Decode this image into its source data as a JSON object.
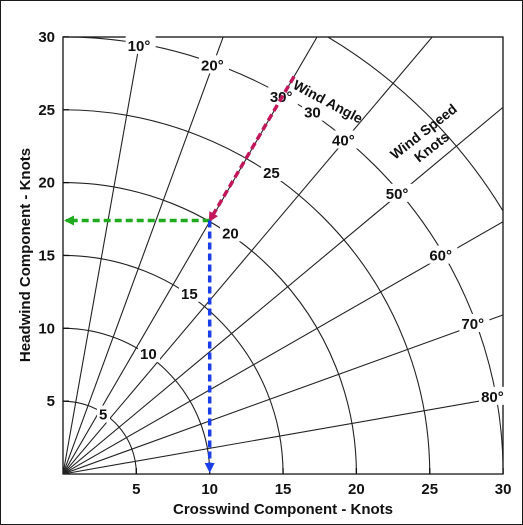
{
  "chart_data": {
    "type": "polar-grid",
    "xlabel": "Crosswind Component - Knots",
    "ylabel": "Headwind Component - Knots",
    "xlim": [
      0,
      30
    ],
    "ylim": [
      0,
      30
    ],
    "x_ticks": [
      "5",
      "10",
      "15",
      "20",
      "25",
      "30"
    ],
    "y_ticks": [
      "5",
      "10",
      "15",
      "20",
      "25",
      "30"
    ],
    "wind_speed_rings": [
      5,
      10,
      15,
      20,
      25,
      30,
      35
    ],
    "wind_speed_labels": [
      {
        "speed": 5,
        "text": "5"
      },
      {
        "speed": 10,
        "text": "10"
      },
      {
        "speed": 15,
        "text": "15"
      },
      {
        "speed": 20,
        "text": "20"
      },
      {
        "speed": 25,
        "text": "25"
      },
      {
        "speed": 30,
        "text": "30"
      }
    ],
    "angle_rays": [
      10,
      20,
      30,
      40,
      50,
      60,
      70,
      80,
      90
    ],
    "angle_labels": [
      {
        "angle": 10,
        "text": "10°"
      },
      {
        "angle": 20,
        "text": "20°"
      },
      {
        "angle": 30,
        "text": "30°"
      },
      {
        "angle": 40,
        "text": "40°"
      },
      {
        "angle": 50,
        "text": "50°"
      },
      {
        "angle": 60,
        "text": "60°"
      },
      {
        "angle": 70,
        "text": "70°"
      },
      {
        "angle": 80,
        "text": "80°"
      }
    ],
    "annotations": {
      "wind_angle": "Wind Angle",
      "wind_speed_line1": "Wind Speed",
      "wind_speed_line2": "Knots"
    },
    "example": {
      "wind_angle": 30,
      "wind_speed": 20,
      "crosswind": 10,
      "headwind": 17.4,
      "colors": {
        "wind": "#c2185b",
        "headwind": "#1faa1f",
        "crosswind": "#1a3fe6"
      }
    }
  }
}
